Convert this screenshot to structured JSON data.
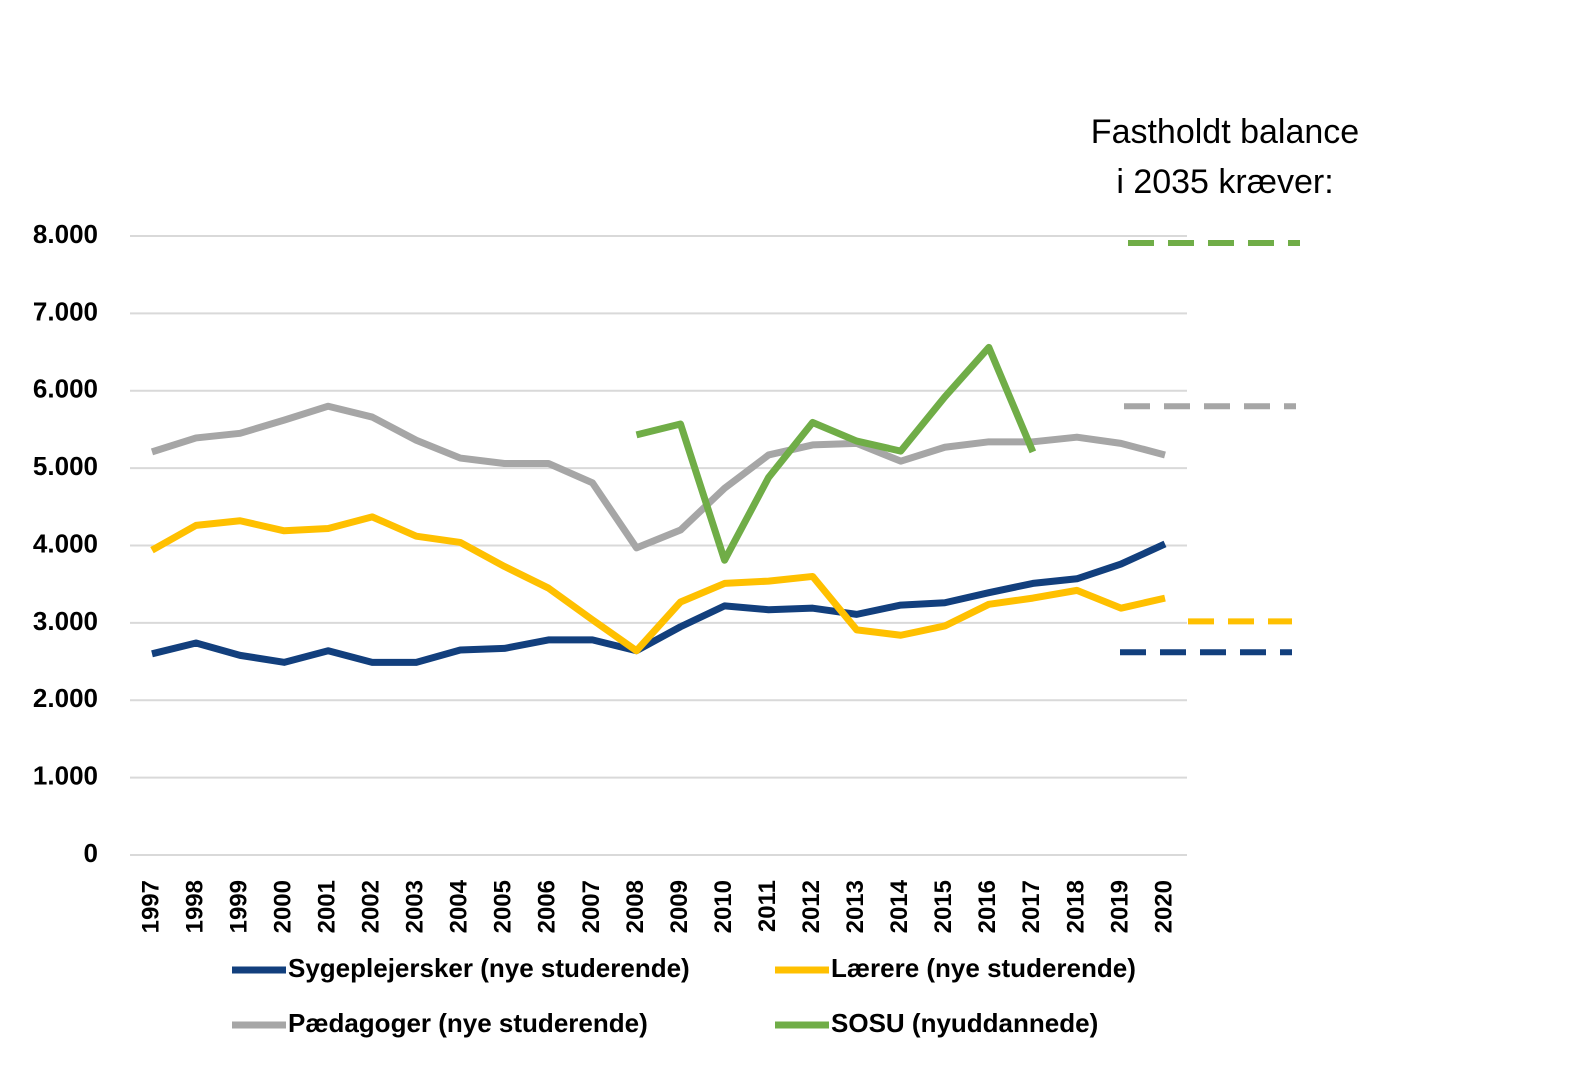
{
  "chart_data": {
    "type": "line",
    "annotation": [
      "Fastholdt balance",
      "i 2035 kræver:"
    ],
    "categories": [
      "1997",
      "1998",
      "1999",
      "2000",
      "2001",
      "2002",
      "2003",
      "2004",
      "2005",
      "2006",
      "2007",
      "2008",
      "2009",
      "2010",
      "2011",
      "2012",
      "2013",
      "2014",
      "2015",
      "2016",
      "2017",
      "2018",
      "2019",
      "2020"
    ],
    "ylim": [
      0,
      8000
    ],
    "yticks": [
      0,
      {
        "value": 1000,
        "label": "1.000"
      },
      {
        "value": 2000,
        "label": "2.000"
      },
      {
        "value": 3000,
        "label": "3.000"
      },
      {
        "value": 4000,
        "label": "4.000"
      },
      {
        "value": 5000,
        "label": "5.000"
      },
      {
        "value": 6000,
        "label": "6.000"
      },
      {
        "value": 7000,
        "label": "7.000"
      },
      {
        "value": 8000,
        "label": "8.000"
      }
    ],
    "grid": true,
    "series": [
      {
        "name": "Sygeplejersker (nye studerende)",
        "color": "#123f7d",
        "target_2035": 2620,
        "values": [
          2600,
          2740,
          2580,
          2490,
          2640,
          2490,
          2490,
          2650,
          2670,
          2780,
          2780,
          2640,
          2950,
          3220,
          3170,
          3190,
          3110,
          3230,
          3260,
          3390,
          3510,
          3570,
          3760,
          4020
        ]
      },
      {
        "name": "Lærere  (nye studerende)",
        "color": "#ffc000",
        "target_2035": 3020,
        "values": [
          3940,
          4260,
          4320,
          4190,
          4220,
          4370,
          4120,
          4040,
          3730,
          3450,
          3040,
          2640,
          3270,
          3510,
          3540,
          3600,
          2910,
          2840,
          2960,
          3240,
          3320,
          3420,
          3190,
          3320
        ]
      },
      {
        "name": "Pædagoger  (nye studerende)",
        "color": "#a6a6a6",
        "target_2035": 5800,
        "values": [
          5210,
          5390,
          5450,
          5620,
          5800,
          5660,
          5360,
          5130,
          5060,
          5060,
          4810,
          3970,
          4200,
          4740,
          5170,
          5300,
          5320,
          5090,
          5270,
          5340,
          5340,
          5400,
          5320,
          5170
        ]
      },
      {
        "name": "SOSU (nyuddannede)",
        "color": "#70ad47",
        "target_2035": 7910,
        "values": [
          null,
          null,
          null,
          null,
          null,
          null,
          null,
          null,
          null,
          null,
          null,
          5430,
          5570,
          3810,
          4880,
          5590,
          5350,
          5220,
          5920,
          6560,
          5210,
          null,
          null,
          null
        ]
      }
    ]
  }
}
